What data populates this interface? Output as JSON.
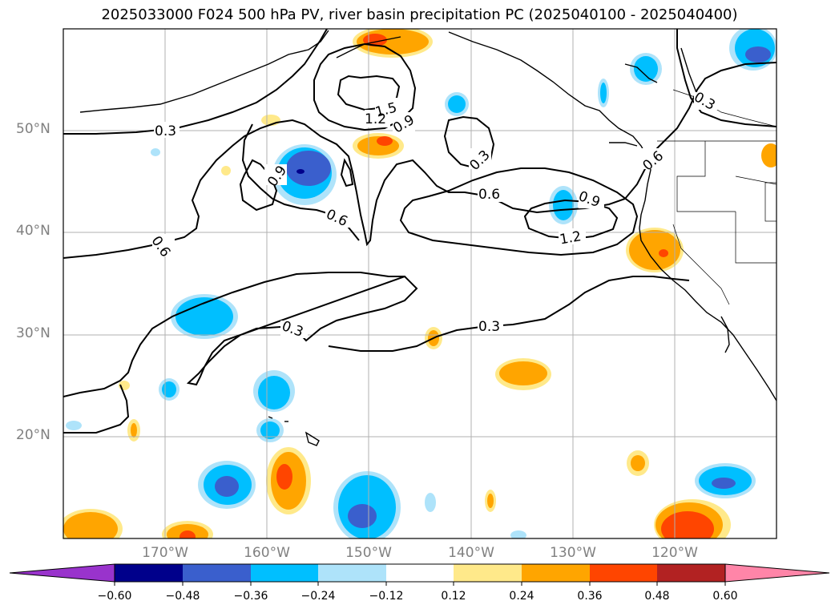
{
  "title": "2025033000 F024 500 hPa PV, river basin precipitation PC (2025040100 - 2025040400)",
  "lat_labels": [
    "50°N",
    "40°N",
    "30°N",
    "20°N"
  ],
  "lon_labels": [
    "170°W",
    "160°W",
    "150°W",
    "140°W",
    "130°W",
    "120°W"
  ],
  "contour_labels": [
    "0.3",
    "0.3",
    "0.3",
    "0.3",
    "0.3",
    "0.6",
    "0.6",
    "0.6",
    "0.6",
    "0.9",
    "0.9",
    "0.9",
    "1.2",
    "1.2",
    "1.5"
  ],
  "colorbar": {
    "colors": [
      "#9933cc",
      "#00008b",
      "#3a5fcd",
      "#00bfff",
      "#aee3fa",
      "#ffffff",
      "#ffe98a",
      "#ffa500",
      "#ff4500",
      "#b22222",
      "#ff85a8"
    ],
    "tick_labels": [
      "−0.60",
      "−0.48",
      "−0.36",
      "−0.24",
      "−0.12",
      "0.12",
      "0.24",
      "0.36",
      "0.48",
      "0.60"
    ]
  },
  "colors": {
    "grid": "#b0b0b0",
    "coast": "#000000",
    "contour": "#000000",
    "axis_label": "#808080"
  }
}
